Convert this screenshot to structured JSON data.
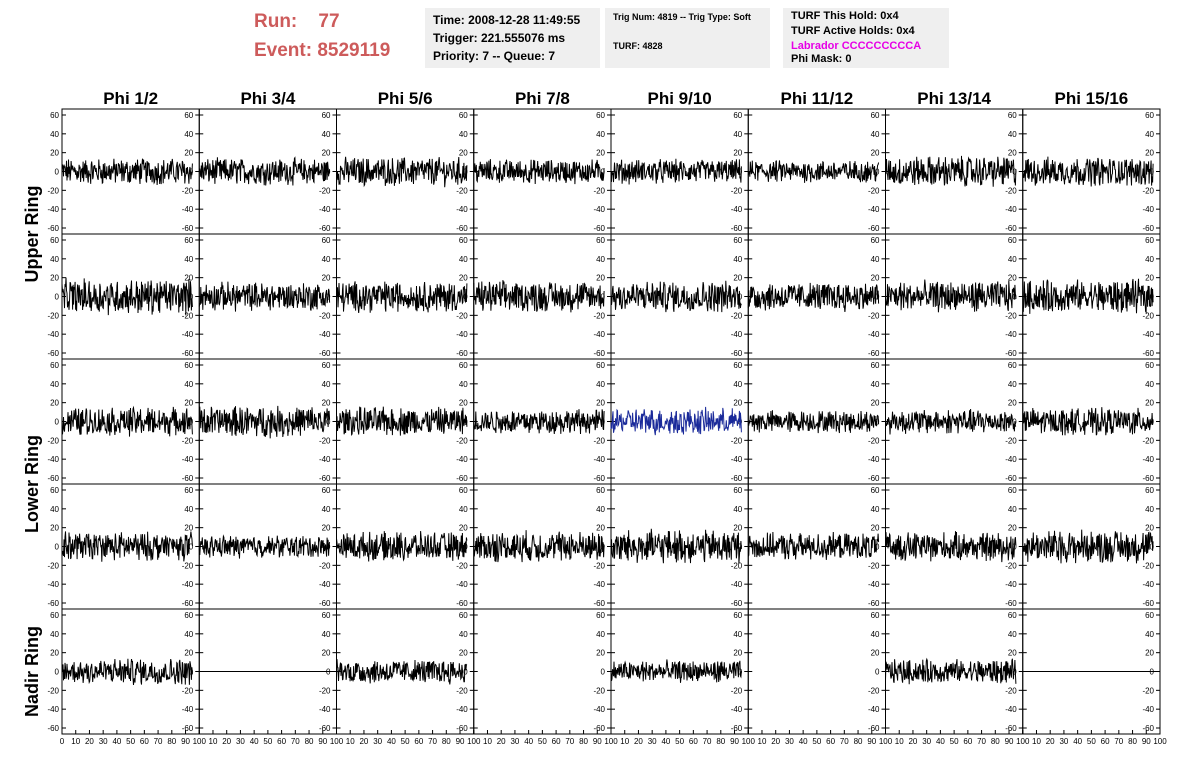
{
  "header": {
    "run_label": "Run:",
    "run_value": "77",
    "event_label": "Event:",
    "event_value": "8529119"
  },
  "info": {
    "time": "Time: 2008-12-28 11:49:55",
    "trigger": "Trigger: 221.555076 ms",
    "priority": "Priority: 7 -- Queue: 7",
    "trig_num": "Trig Num: 4819 -- Trig Type: Soft",
    "turf": "TURF: 4828",
    "turf_hold": "TURF This Hold: 0x4",
    "turf_active": "TURF Active Holds: 0x4",
    "labrador": "Labrador CCCCCCCCCA",
    "phi_mask": "Phi Mask: 0"
  },
  "colors": {
    "header_red": "#cd5b5b",
    "labrador_magenta": "#e600e6",
    "panel_bg": "#efefef",
    "trace_black": "#000000",
    "trace_highlight": "#1a2a9a"
  },
  "chart_data": {
    "type": "line",
    "columns": [
      "Phi 1/2",
      "Phi 3/4",
      "Phi 5/6",
      "Phi 7/8",
      "Phi 9/10",
      "Phi 11/12",
      "Phi 13/14",
      "Phi 15/16"
    ],
    "rows": [
      "Upper Ring",
      "Lower Ring",
      "Nadir Ring"
    ],
    "ylim": [
      -60,
      60
    ],
    "yticks": [
      -60,
      -40,
      -20,
      0,
      20,
      40,
      60
    ],
    "xlim": [
      0,
      100
    ],
    "xticks": [
      0,
      10,
      20,
      30,
      40,
      50,
      60,
      70,
      80,
      90,
      100
    ],
    "samples": 260,
    "highlight": {
      "row": 2,
      "col": 4
    },
    "panels": [
      {
        "row": 0,
        "col": 0,
        "amplitude": 12
      },
      {
        "row": 0,
        "col": 1,
        "amplitude": 12
      },
      {
        "row": 0,
        "col": 2,
        "amplitude": 13
      },
      {
        "row": 0,
        "col": 3,
        "amplitude": 11
      },
      {
        "row": 0,
        "col": 4,
        "amplitude": 11
      },
      {
        "row": 0,
        "col": 5,
        "amplitude": 10
      },
      {
        "row": 0,
        "col": 6,
        "amplitude": 14
      },
      {
        "row": 0,
        "col": 7,
        "amplitude": 13
      },
      {
        "row": 1,
        "col": 0,
        "amplitude": 16
      },
      {
        "row": 1,
        "col": 1,
        "amplitude": 13
      },
      {
        "row": 1,
        "col": 2,
        "amplitude": 14
      },
      {
        "row": 1,
        "col": 3,
        "amplitude": 14
      },
      {
        "row": 1,
        "col": 4,
        "amplitude": 14
      },
      {
        "row": 1,
        "col": 5,
        "amplitude": 13
      },
      {
        "row": 1,
        "col": 6,
        "amplitude": 14
      },
      {
        "row": 1,
        "col": 7,
        "amplitude": 15
      },
      {
        "row": 2,
        "col": 0,
        "amplitude": 13
      },
      {
        "row": 2,
        "col": 1,
        "amplitude": 14
      },
      {
        "row": 2,
        "col": 2,
        "amplitude": 13
      },
      {
        "row": 2,
        "col": 3,
        "amplitude": 11
      },
      {
        "row": 2,
        "col": 4,
        "amplitude": 12
      },
      {
        "row": 2,
        "col": 5,
        "amplitude": 10
      },
      {
        "row": 2,
        "col": 6,
        "amplitude": 11
      },
      {
        "row": 2,
        "col": 7,
        "amplitude": 12
      },
      {
        "row": 3,
        "col": 0,
        "amplitude": 13
      },
      {
        "row": 3,
        "col": 1,
        "amplitude": 10
      },
      {
        "row": 3,
        "col": 2,
        "amplitude": 13
      },
      {
        "row": 3,
        "col": 3,
        "amplitude": 14
      },
      {
        "row": 3,
        "col": 4,
        "amplitude": 15
      },
      {
        "row": 3,
        "col": 5,
        "amplitude": 12
      },
      {
        "row": 3,
        "col": 6,
        "amplitude": 13
      },
      {
        "row": 3,
        "col": 7,
        "amplitude": 15
      },
      {
        "row": 4,
        "col": 0,
        "amplitude": 12
      },
      {
        "row": 4,
        "col": 1,
        "amplitude": 0
      },
      {
        "row": 4,
        "col": 2,
        "amplitude": 11
      },
      {
        "row": 4,
        "col": 3,
        "amplitude": null
      },
      {
        "row": 4,
        "col": 4,
        "amplitude": 10
      },
      {
        "row": 4,
        "col": 5,
        "amplitude": null
      },
      {
        "row": 4,
        "col": 6,
        "amplitude": 11
      },
      {
        "row": 4,
        "col": 7,
        "amplitude": 0
      }
    ]
  }
}
